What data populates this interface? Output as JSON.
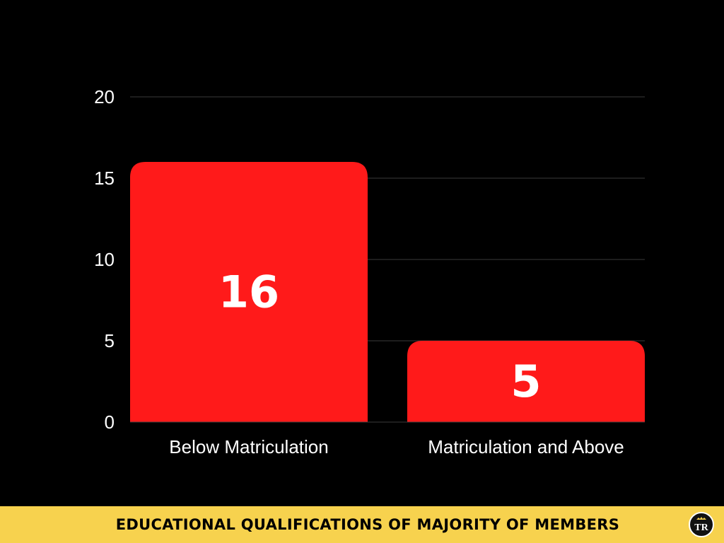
{
  "chart_data": {
    "type": "bar",
    "categories": [
      "Below Matriculation",
      "Matriculation and Above"
    ],
    "values": [
      16,
      5
    ],
    "data_labels": [
      "16",
      "5"
    ],
    "ylim": [
      0,
      20
    ],
    "yticks": [
      0,
      5,
      10,
      15,
      20
    ],
    "title": "EDUCATIONAL QUALIFICATIONS OF MAJORITY OF MEMBERS",
    "xlabel": "",
    "ylabel": "",
    "grid": true,
    "legend": "none",
    "colors": {
      "background": "#000000",
      "bar": "#ff1a1a",
      "text": "#ffffff",
      "grid": "#3a3a3a",
      "footer_band": "#f7d24e"
    }
  },
  "footer": {
    "title": "EDUCATIONAL QUALIFICATIONS OF MAJORITY OF MEMBERS",
    "logo": {
      "text": "TR",
      "icon": "tr-logo-icon"
    }
  }
}
